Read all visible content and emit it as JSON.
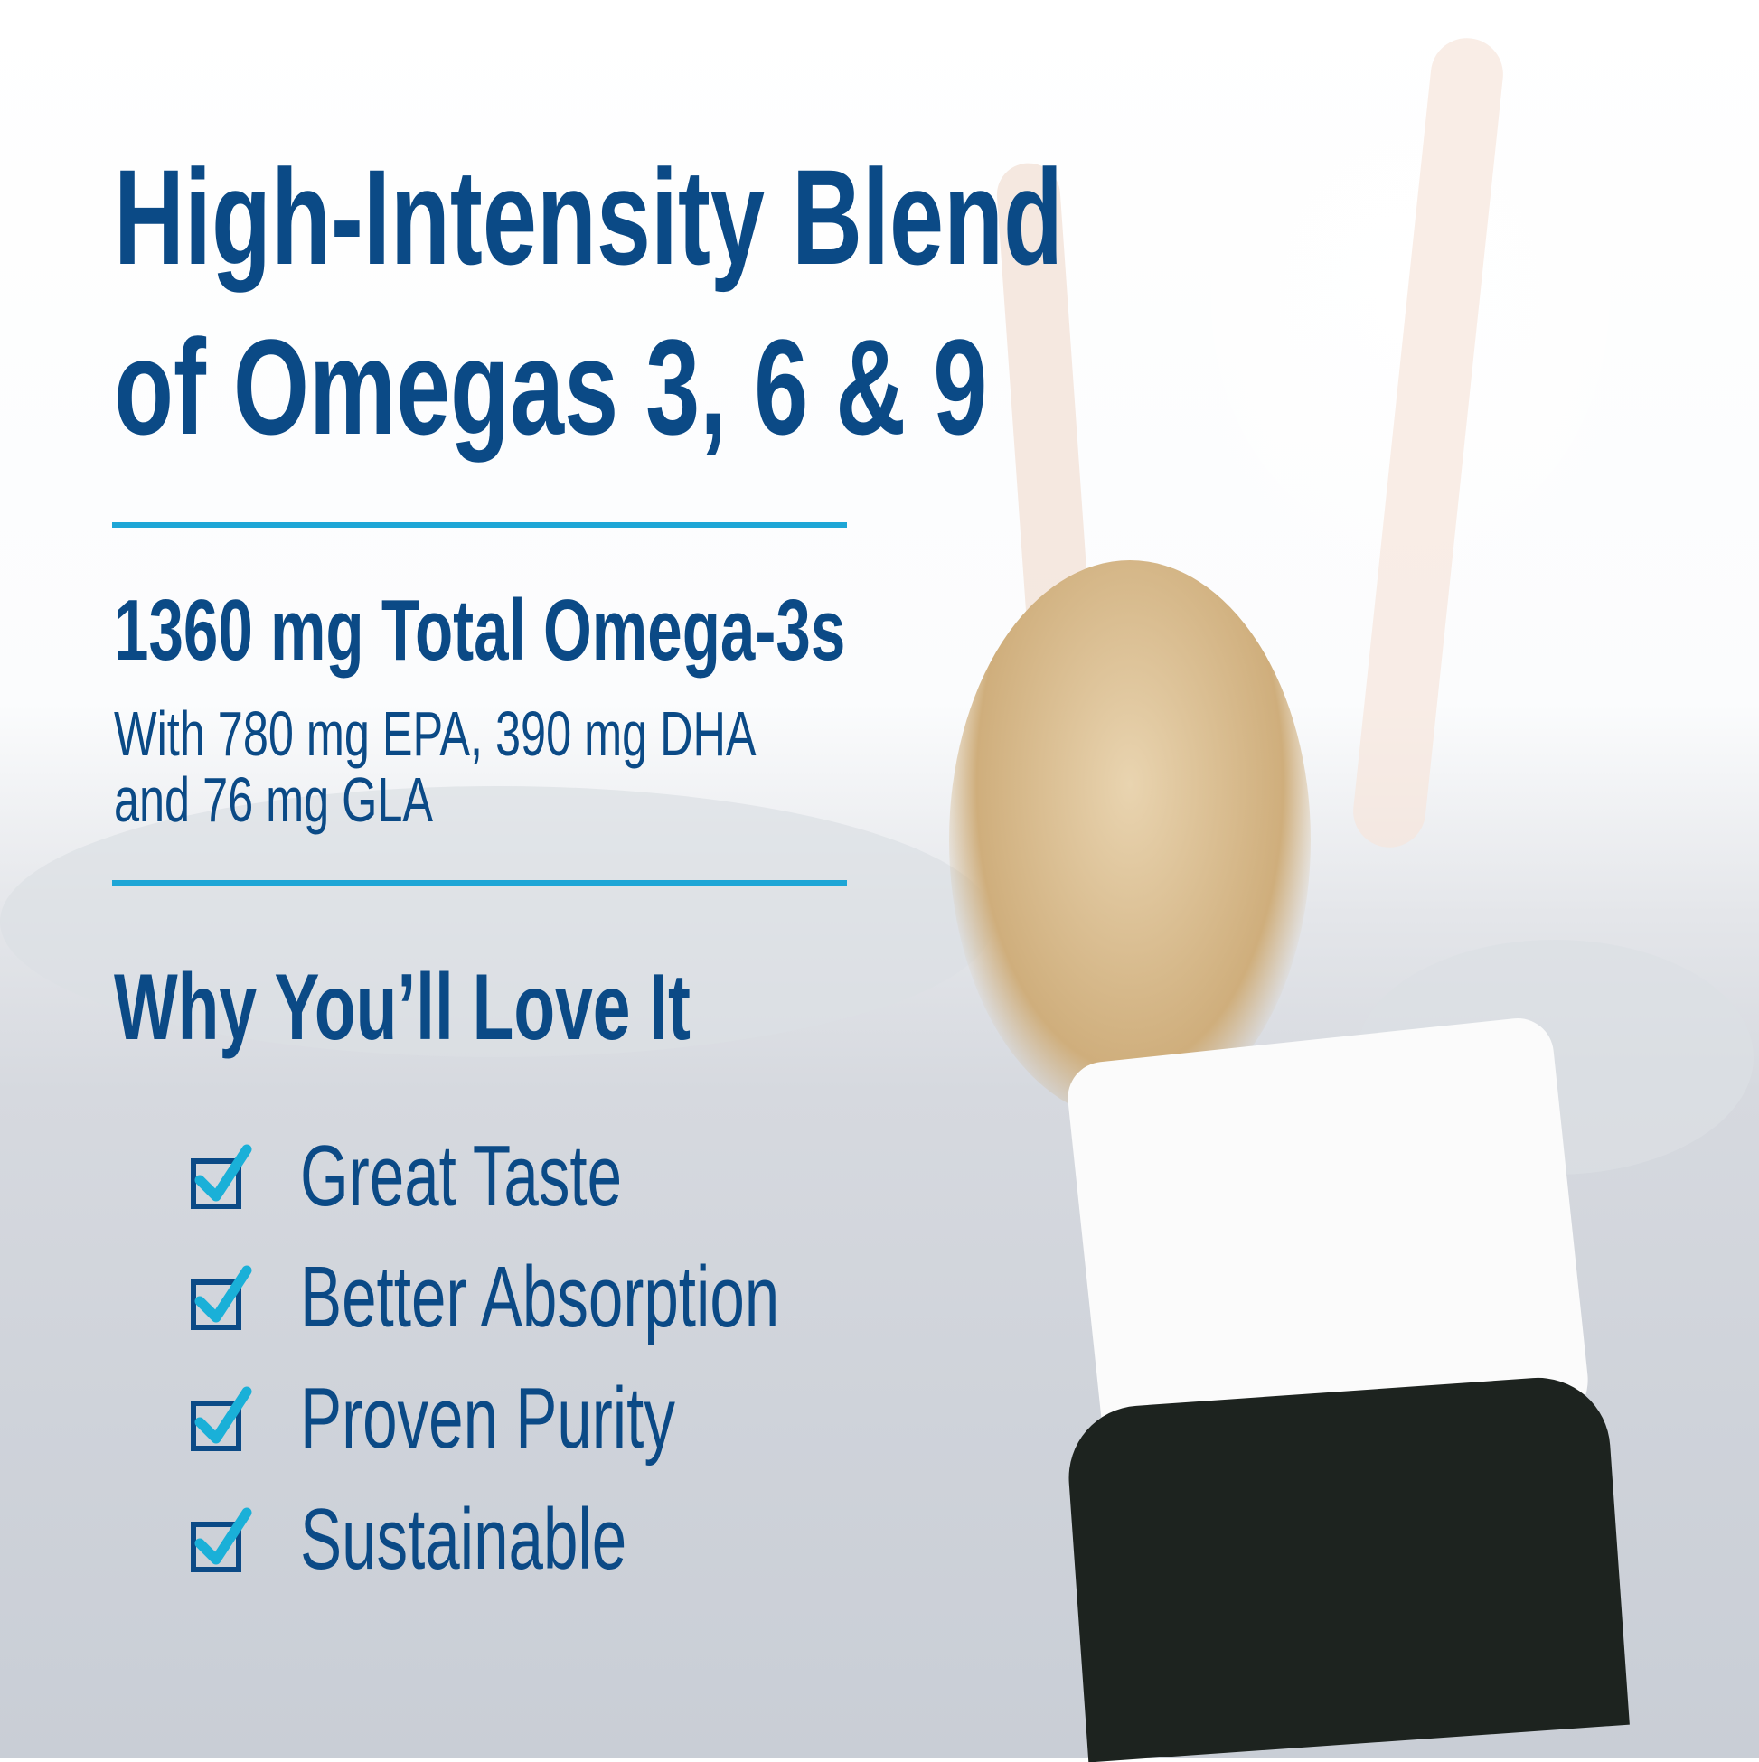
{
  "headline": {
    "line1": "High-Intensity Blend",
    "line2": "of Omegas 3, 6 & 9"
  },
  "omega3": {
    "total": "1360 mg Total Omega-3s",
    "detail_line1": "With 780 mg EPA, 390 mg DHA",
    "detail_line2": "and 76 mg GLA"
  },
  "benefits": {
    "title": "Why You’ll Love It",
    "items": [
      {
        "label": "Great Taste",
        "checked": true,
        "icon": "checkbox-checked-icon"
      },
      {
        "label": "Better Absorption",
        "checked": true,
        "icon": "checkbox-checked-icon"
      },
      {
        "label": "Proven Purity",
        "checked": true,
        "icon": "checkbox-checked-icon"
      },
      {
        "label": "Sustainable",
        "checked": true,
        "icon": "checkbox-checked-icon"
      }
    ]
  },
  "colors": {
    "text": "#0b4a86",
    "accent": "#1ea6d6",
    "check": "#1ab0d8"
  }
}
